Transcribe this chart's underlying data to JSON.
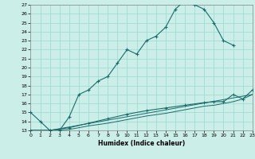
{
  "xlabel": "Humidex (Indice chaleur)",
  "bg_color": "#cceee8",
  "grid_color": "#99d9d0",
  "line_color": "#1a6b6b",
  "xlim": [
    0,
    23
  ],
  "ylim": [
    13,
    27
  ],
  "xticks": [
    0,
    1,
    2,
    3,
    4,
    5,
    6,
    7,
    8,
    9,
    10,
    11,
    12,
    13,
    14,
    15,
    16,
    17,
    18,
    19,
    20,
    21,
    22,
    23
  ],
  "yticks": [
    13,
    14,
    15,
    16,
    17,
    18,
    19,
    20,
    21,
    22,
    23,
    24,
    25,
    26,
    27
  ],
  "line1_x": [
    0,
    1,
    2,
    3,
    4,
    5,
    6,
    7,
    8,
    9,
    10,
    11,
    12,
    13,
    14,
    15,
    16,
    17,
    18,
    19,
    20,
    21
  ],
  "line1_y": [
    15,
    14,
    13,
    13,
    14.5,
    17,
    17.5,
    18.5,
    19.0,
    20.5,
    22.0,
    21.5,
    23.0,
    23.5,
    24.5,
    26.5,
    27.5,
    27.0,
    26.5,
    25.0,
    23.0,
    22.5
  ],
  "line2_x": [
    0,
    2,
    4,
    6,
    8,
    10,
    12,
    14,
    16,
    18,
    19,
    20,
    21,
    22,
    23
  ],
  "line2_y": [
    13,
    13,
    13.3,
    13.8,
    14.3,
    14.8,
    15.2,
    15.5,
    15.8,
    16.1,
    16.2,
    16.2,
    17.0,
    16.5,
    17.5
  ],
  "line3_x": [
    0,
    2,
    4,
    6,
    8,
    10,
    12,
    14,
    16,
    18,
    19,
    20,
    21,
    22,
    23
  ],
  "line3_y": [
    13,
    13,
    13.1,
    13.5,
    13.8,
    14.2,
    14.6,
    14.9,
    15.3,
    15.7,
    15.8,
    16.0,
    16.2,
    16.5,
    17.0
  ],
  "line4_x": [
    0,
    2,
    23
  ],
  "line4_y": [
    13,
    13,
    17.0
  ]
}
